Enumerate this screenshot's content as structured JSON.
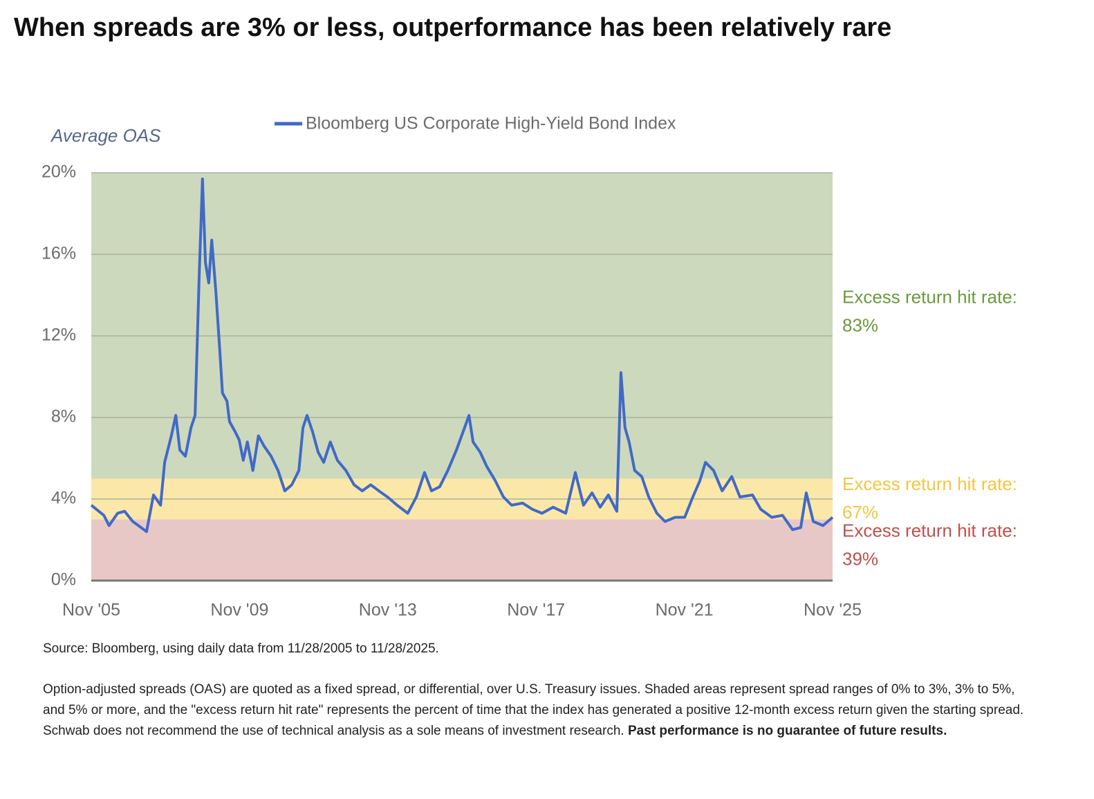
{
  "chart_data": {
    "type": "line",
    "title": "When spreads are 3% or less, outperformance has been relatively rare",
    "ylabel": "Average OAS",
    "xlim": [
      2005.92,
      2025.92
    ],
    "xticks": [
      {
        "value": 2005.92,
        "label": "Nov '05"
      },
      {
        "value": 2009.92,
        "label": "Nov '09"
      },
      {
        "value": 2013.92,
        "label": "Nov '13"
      },
      {
        "value": 2017.92,
        "label": "Nov '17"
      },
      {
        "value": 2021.92,
        "label": "Nov '21"
      },
      {
        "value": 2025.92,
        "label": "Nov '25"
      }
    ],
    "ylim": [
      0,
      20
    ],
    "yticks": [
      {
        "value": 0,
        "label": "0%"
      },
      {
        "value": 4,
        "label": "4%"
      },
      {
        "value": 8,
        "label": "8%"
      },
      {
        "value": 12,
        "label": "12%"
      },
      {
        "value": 16,
        "label": "16%"
      },
      {
        "value": 20,
        "label": "20%"
      }
    ],
    "grid": true,
    "bands": [
      {
        "from": 0,
        "to": 3,
        "color": "#e8c8c6",
        "text_color": "#c0504d",
        "text": "Excess return hit rate:",
        "hit_rate": "39%"
      },
      {
        "from": 3,
        "to": 5,
        "color": "#fbe8a8",
        "text_color": "#f5c542",
        "text": "Excess return hit rate:",
        "hit_rate": "67%"
      },
      {
        "from": 5,
        "to": 20,
        "color": "#cdd9bc",
        "text_color": "#6b9a3c",
        "text": "Excess return hit rate:",
        "hit_rate": "83%"
      }
    ],
    "x": [
      2005.92,
      2006.26,
      2006.4,
      2006.63,
      2006.82,
      2007.04,
      2007.19,
      2007.41,
      2007.6,
      2007.79,
      2007.9,
      2008.08,
      2008.2,
      2008.31,
      2008.46,
      2008.61,
      2008.72,
      2008.83,
      2008.92,
      2009.0,
      2009.09,
      2009.17,
      2009.28,
      2009.39,
      2009.46,
      2009.58,
      2009.65,
      2009.8,
      2009.91,
      2010.02,
      2010.13,
      2010.28,
      2010.43,
      2010.58,
      2010.77,
      2010.96,
      2011.14,
      2011.33,
      2011.52,
      2011.63,
      2011.74,
      2011.89,
      2012.04,
      2012.19,
      2012.37,
      2012.56,
      2012.79,
      2013.01,
      2013.23,
      2013.46,
      2013.68,
      2013.91,
      2014.17,
      2014.46,
      2014.69,
      2014.91,
      2015.1,
      2015.32,
      2015.54,
      2015.77,
      2015.99,
      2016.11,
      2016.22,
      2016.41,
      2016.59,
      2016.82,
      2017.04,
      2017.26,
      2017.56,
      2017.82,
      2018.08,
      2018.38,
      2018.72,
      2018.98,
      2019.2,
      2019.43,
      2019.65,
      2019.87,
      2020.1,
      2020.21,
      2020.32,
      2020.43,
      2020.58,
      2020.77,
      2020.96,
      2021.18,
      2021.4,
      2021.67,
      2021.93,
      2022.15,
      2022.34,
      2022.49,
      2022.71,
      2022.94,
      2023.2,
      2023.42,
      2023.76,
      2023.98,
      2024.28,
      2024.57,
      2024.84,
      2025.06,
      2025.21,
      2025.4,
      2025.66,
      2025.92
    ],
    "series": [
      {
        "name": "Bloomberg US Corporate High-Yield Bond Index",
        "color": "#4169c8",
        "values": [
          3.7,
          3.2,
          2.7,
          3.3,
          3.4,
          2.9,
          2.7,
          2.4,
          4.2,
          3.7,
          5.8,
          7.1,
          8.1,
          6.4,
          6.1,
          7.5,
          8.1,
          14.9,
          19.7,
          15.6,
          14.6,
          16.7,
          14.2,
          11.2,
          9.2,
          8.8,
          7.8,
          7.3,
          6.9,
          5.9,
          6.8,
          5.4,
          7.1,
          6.6,
          6.1,
          5.4,
          4.4,
          4.7,
          5.4,
          7.5,
          8.1,
          7.3,
          6.3,
          5.8,
          6.8,
          5.9,
          5.4,
          4.7,
          4.4,
          4.7,
          4.4,
          4.1,
          3.7,
          3.3,
          4.1,
          5.3,
          4.4,
          4.6,
          5.4,
          6.4,
          7.5,
          8.1,
          6.8,
          6.3,
          5.6,
          4.9,
          4.1,
          3.7,
          3.8,
          3.5,
          3.3,
          3.6,
          3.3,
          5.3,
          3.7,
          4.3,
          3.6,
          4.2,
          3.4,
          10.2,
          7.5,
          6.8,
          5.4,
          5.1,
          4.1,
          3.3,
          2.9,
          3.1,
          3.1,
          4.1,
          4.9,
          5.8,
          5.4,
          4.4,
          5.1,
          4.1,
          4.2,
          3.5,
          3.1,
          3.2,
          2.5,
          2.6,
          4.3,
          2.9,
          2.7,
          3.1
        ]
      }
    ]
  },
  "footer": {
    "source": "Source: Bloomberg, using daily data from 11/28/2005 to 11/28/2025.",
    "note": "Option-adjusted spreads (OAS) are quoted as a fixed spread, or differential, over U.S. Treasury issues. Shaded areas represent spread ranges of 0% to 3%, 3% to 5%, and 5% or more, and the \"excess return hit rate\" represents the percent of time that the index has generated a positive 12-month excess return given the starting spread. Schwab does not recommend the use of technical analysis as a sole means of investment research.",
    "note_bold": "Past performance is no guarantee of future results."
  }
}
